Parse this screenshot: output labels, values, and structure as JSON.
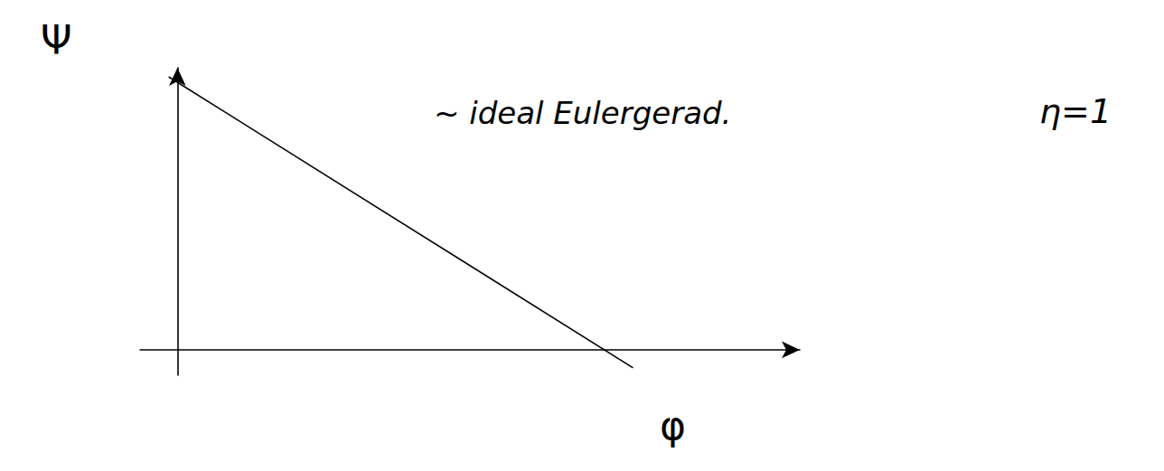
{
  "chart_data": {
    "type": "line",
    "x": [
      -0.014,
      0.732
    ],
    "values": [
      0.968,
      -0.064
    ],
    "color": "#000000",
    "line_style": "solid",
    "marker": "none",
    "xlim": [
      -0.06,
      1
    ],
    "ylim": [
      -0.09,
      1
    ],
    "x_label": "φ",
    "y_label": "Ψ",
    "annotations": [
      "~ ideal Eulergerad.",
      "η=1"
    ],
    "grid": false,
    "tick_labels": false
  }
}
